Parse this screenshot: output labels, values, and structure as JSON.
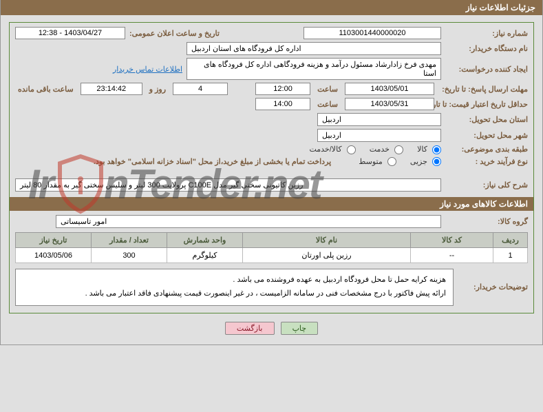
{
  "title_bar": "جزئیات اطلاعات نیاز",
  "labels": {
    "need_no": "شماره نیاز:",
    "announce_dt": "تاریخ و ساعت اعلان عمومی:",
    "buyer_org": "نام دستگاه خریدار:",
    "requester": "ایجاد کننده درخواست:",
    "contact_link": "اطلاعات تماس خریدار",
    "reply_deadline": "مهلت ارسال پاسخ: تا تاریخ:",
    "hour": "ساعت",
    "day_and": "روز و",
    "remaining": "ساعت باقی مانده",
    "price_valid": "حداقل تاریخ اعتبار قیمت: تا تاریخ:",
    "delivery_prov": "استان محل تحویل:",
    "delivery_city": "شهر محل تحویل:",
    "subject_class": "طبقه بندی موضوعی:",
    "purchase_type": "نوع فرآیند خرید :",
    "overall_desc": "شرح کلی نیاز:",
    "section_items": "اطلاعات کالاهای مورد نیاز",
    "goods_group": "گروه کالا:",
    "buyer_notes": "توضیحات خریدار:"
  },
  "values": {
    "need_no": "1103001440000020",
    "announce_dt": "1403/04/27 - 12:38",
    "buyer_org": "اداره کل فرودگاه های استان اردبیل",
    "requester": "مهدی فرخ زادارشاد مسئول درآمد و هزینه فرودگاهی اداره کل فرودگاه های استا",
    "reply_date": "1403/05/01",
    "reply_time": "12:00",
    "remaining_days": "4",
    "remaining_clock": "23:14:42",
    "price_date": "1403/05/31",
    "price_time": "14:00",
    "delivery_prov": "اردبیل",
    "delivery_city": "اردبیل",
    "overall_desc": "رزین کاتیونی سختی گیر مدل C100E پرولایت  300 لیتر و سلیس سختی گیر به مقدار 80 لیتر",
    "goods_group": "امور تاسیساتی"
  },
  "radios": {
    "subject": {
      "goods": "کالا",
      "service": "خدمت",
      "both": "کالا/خدمت",
      "selected": "goods"
    },
    "purchase": {
      "partial": "جزیی",
      "medium": "متوسط",
      "selected": "partial"
    },
    "purchase_note": "پرداخت تمام یا بخشی از مبلغ خرید،از محل \"اسناد خزانه اسلامی\" خواهد بود."
  },
  "table": {
    "headers": {
      "row": "ردیف",
      "code": "کد کالا",
      "name": "نام کالا",
      "unit": "واحد شمارش",
      "qty": "تعداد / مقدار",
      "date": "تاریخ نیاز"
    },
    "rows": [
      {
        "row": "1",
        "code": "--",
        "name": "رزین پلی اورتان",
        "unit": "کیلوگرم",
        "qty": "300",
        "date": "1403/05/06"
      }
    ]
  },
  "buyer_notes_lines": [
    "هزینه کرایه حمل تا محل فرودگاه اردبیل به عهده فروشنده می باشد .",
    "ارائه پیش فاکتور با درج مشخصات فنی در سامانه الزامیست ، در غیر اینصورت قیمت پیشنهادی فاقد اعتبار می باشد ."
  ],
  "buttons": {
    "print": "چاپ",
    "back": "بازگشت"
  },
  "watermark": {
    "text_prefix": "Ir",
    "text_suffix": "nTender.net",
    "shield_stroke": "#c0392b",
    "text_color": "#3a3a3a"
  },
  "colors": {
    "header_bg": "#8a6d4b",
    "panel_border": "#5a8a3a",
    "label_color": "#7a5c3e",
    "link_color": "#1e70c1",
    "table_header_bg": "#c9cdc5"
  }
}
